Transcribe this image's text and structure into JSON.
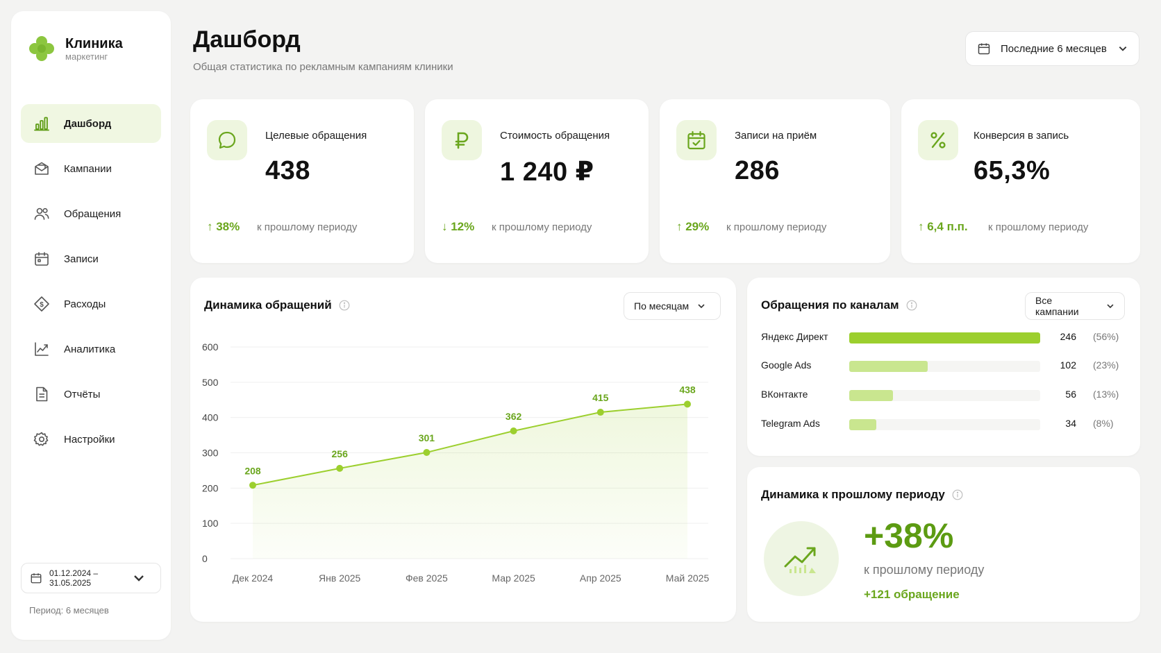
{
  "brand": {
    "title": "Клиника",
    "subtitle": "маркетинг"
  },
  "nav": [
    {
      "label": "Дашборд",
      "icon": "bar-chart-icon",
      "active": true
    },
    {
      "label": "Кампании",
      "icon": "mail-icon"
    },
    {
      "label": "Обращения",
      "icon": "users-icon"
    },
    {
      "label": "Записи",
      "icon": "calendar-icon"
    },
    {
      "label": "Расходы",
      "icon": "dollar-icon"
    },
    {
      "label": "Аналитика",
      "icon": "trend-icon"
    },
    {
      "label": "Отчёты",
      "icon": "document-icon"
    },
    {
      "label": "Настройки",
      "icon": "gear-icon"
    }
  ],
  "sidebar_footer": {
    "date_range": "01.12.2024 – 31.05.2025",
    "period": "Период: 6 месяцев"
  },
  "header": {
    "title": "Дашборд",
    "subtitle": "Общая статистика по рекламным кампаниям клиники",
    "period_select": "Последние 6 месяцев"
  },
  "kpis": [
    {
      "label": "Целевые обращения",
      "value": "438",
      "delta": "↑ 38%",
      "note": "к прошлому периоду",
      "icon": "chat-icon"
    },
    {
      "label": "Стоимость обращения",
      "value": "1 240 ₽",
      "delta": "↓ 12%",
      "note": "к прошлому периоду",
      "icon": "ruble-icon"
    },
    {
      "label": "Записи на приём",
      "value": "286",
      "delta": "↑ 29%",
      "note": "к прошлому периоду",
      "icon": "calendar-check-icon"
    },
    {
      "label": "Конверсия в запись",
      "value": "65,3%",
      "delta": "↑ 6,4 п.п.",
      "note": "к прошлому периоду",
      "icon": "percent-icon"
    }
  ],
  "requests_chart": {
    "title": "Динамика обращений",
    "dropdown": "По месяцам"
  },
  "chart_data": {
    "type": "area",
    "categories": [
      "Дек 2024",
      "Янв 2025",
      "Фев 2025",
      "Мар 2025",
      "Апр 2025",
      "Май 2025"
    ],
    "values": [
      208,
      256,
      301,
      362,
      415,
      438
    ],
    "yticks": [
      "600",
      "500",
      "400",
      "300",
      "200",
      "100",
      "0"
    ],
    "ylim": [
      0,
      600
    ],
    "grid": true,
    "color": "#9ccf2e"
  },
  "channels": {
    "title": "Обращения по каналам",
    "dropdown": "Все кампании",
    "items": [
      {
        "name": "Яндекс Директ",
        "value": "246",
        "pct": "(56%)",
        "share": 1.0,
        "color": "#9ccf2e"
      },
      {
        "name": "Google Ads",
        "value": "102",
        "pct": "(23%)",
        "share": 0.41,
        "color": "#c9e68f"
      },
      {
        "name": "ВКонтакте",
        "value": "56",
        "pct": "(13%)",
        "share": 0.23,
        "color": "#c9e68f"
      },
      {
        "name": "Telegram Ads",
        "value": "34",
        "pct": "(8%)",
        "share": 0.14,
        "color": "#c9e68f"
      }
    ]
  },
  "dynamics": {
    "title": "Динамика к прошлому периоду",
    "big": "+38%",
    "note": "к прошлому периоду",
    "sub": "+121 обращение"
  },
  "colors": {
    "accent": "#9ccf2e",
    "accent_dark": "#6aa61d",
    "accent_bg": "#eef6df"
  }
}
